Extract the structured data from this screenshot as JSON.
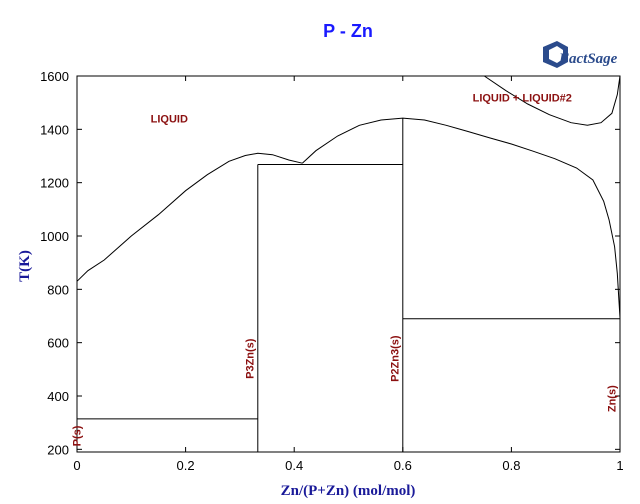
{
  "title": "P - Zn",
  "logo_text": "FactSage",
  "chart_data": {
    "type": "line",
    "xlabel": "Zn/(P+Zn) (mol/mol)",
    "ylabel": "T(K)",
    "xlim": [
      0,
      1
    ],
    "ylim": [
      200,
      1600
    ],
    "x_ticks": [
      0,
      0.2,
      0.4,
      0.6,
      0.8,
      1
    ],
    "x_tick_labels": [
      "0",
      "0.2",
      "0.4",
      "0.6",
      "0.8",
      "1"
    ],
    "y_ticks": [
      200,
      400,
      600,
      800,
      1000,
      1200,
      1400,
      1600
    ],
    "y_tick_labels": [
      "200",
      "400",
      "600",
      "800",
      "1000",
      "1200",
      "1400",
      "1600"
    ],
    "grid": false,
    "series": [
      {
        "values": [
          [
            0.0,
            830
          ],
          [
            0.02,
            870
          ],
          [
            0.05,
            910
          ],
          [
            0.1,
            1000
          ],
          [
            0.15,
            1080
          ],
          [
            0.2,
            1170
          ],
          [
            0.24,
            1230
          ],
          [
            0.28,
            1280
          ],
          [
            0.31,
            1302
          ],
          [
            0.333,
            1310
          ],
          [
            0.36,
            1305
          ],
          [
            0.39,
            1285
          ],
          [
            0.415,
            1273
          ]
        ]
      },
      {
        "values": [
          [
            0.415,
            1273
          ],
          [
            0.44,
            1320
          ],
          [
            0.48,
            1375
          ],
          [
            0.52,
            1415
          ],
          [
            0.56,
            1435
          ],
          [
            0.6,
            1442
          ],
          [
            0.64,
            1435
          ],
          [
            0.68,
            1415
          ],
          [
            0.72,
            1392
          ],
          [
            0.76,
            1368
          ],
          [
            0.8,
            1345
          ],
          [
            0.84,
            1318
          ],
          [
            0.88,
            1290
          ],
          [
            0.92,
            1255
          ],
          [
            0.95,
            1210
          ],
          [
            0.97,
            1130
          ],
          [
            0.98,
            1060
          ],
          [
            0.99,
            960
          ],
          [
            0.995,
            860
          ],
          [
            0.998,
            760
          ],
          [
            1.0,
            693
          ]
        ]
      },
      {
        "values": [
          [
            0.75,
            1600
          ],
          [
            0.79,
            1545
          ],
          [
            0.83,
            1495
          ],
          [
            0.87,
            1455
          ],
          [
            0.91,
            1425
          ],
          [
            0.94,
            1415
          ],
          [
            0.965,
            1425
          ],
          [
            0.985,
            1460
          ],
          [
            0.995,
            1530
          ],
          [
            1.0,
            1600
          ]
        ]
      },
      {
        "values": [
          [
            0.333,
            1268
          ],
          [
            0.6,
            1268
          ]
        ]
      },
      {
        "values": [
          [
            0.6,
            690
          ],
          [
            1.0,
            690
          ]
        ]
      },
      {
        "values": [
          [
            0.0,
            314
          ],
          [
            0.333,
            314
          ]
        ]
      },
      {
        "values": [
          [
            0.333,
            190
          ],
          [
            0.333,
            1268
          ]
        ]
      },
      {
        "values": [
          [
            0.6,
            190
          ],
          [
            0.6,
            1442
          ]
        ]
      },
      {
        "values": [
          [
            0.0,
            190
          ],
          [
            0.0,
            314
          ]
        ]
      },
      {
        "values": [
          [
            1.0,
            190
          ],
          [
            1.0,
            690
          ]
        ]
      }
    ],
    "annotations": [
      {
        "text": "LIQUID",
        "x": 0.17,
        "y": 1425
      },
      {
        "text": "LIQUID + LIQUID#2",
        "x": 0.82,
        "y": 1505
      },
      {
        "text": "P(s)",
        "x": 0.006,
        "y": 250,
        "rotation": -90
      },
      {
        "text": "P3Zn(s)",
        "x": 0.325,
        "y": 540,
        "rotation": -90
      },
      {
        "text": "P2Zn3(s)",
        "x": 0.592,
        "y": 540,
        "rotation": -90
      },
      {
        "text": "Zn(s)",
        "x": 0.992,
        "y": 390,
        "rotation": -90
      }
    ]
  }
}
